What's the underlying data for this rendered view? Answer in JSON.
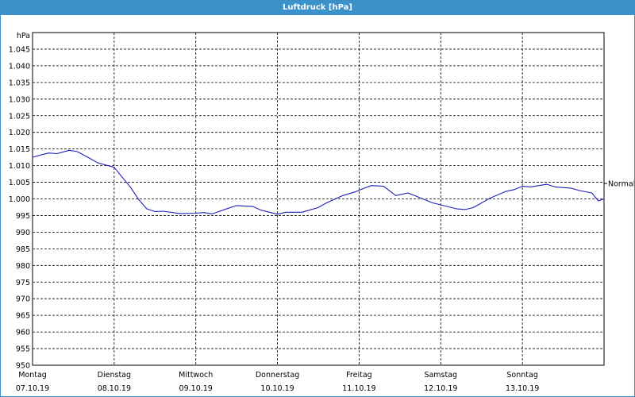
{
  "window": {
    "title": "Luftdruck [hPa]"
  },
  "chart_data": {
    "type": "line",
    "unit_label": "hPa",
    "ylim": [
      950,
      1050
    ],
    "yticks": [
      950,
      955,
      960,
      965,
      970,
      975,
      980,
      985,
      990,
      995,
      1000,
      1005,
      1010,
      1015,
      1020,
      1025,
      1030,
      1035,
      1040,
      1045
    ],
    "ytick_labels": [
      "950",
      "955",
      "960",
      "965",
      "970",
      "975",
      "980",
      "985",
      "990",
      "995",
      "1.000",
      "1.005",
      "1.010",
      "1.015",
      "1.020",
      "1.025",
      "1.030",
      "1.035",
      "1.040",
      "1.045"
    ],
    "xlim": [
      0,
      7
    ],
    "days": [
      {
        "day": "Montag",
        "date": "07.10.19"
      },
      {
        "day": "Dienstag",
        "date": "08.10.19"
      },
      {
        "day": "Mittwoch",
        "date": "09.10.19"
      },
      {
        "day": "Donnerstag",
        "date": "10.10.19"
      },
      {
        "day": "Freitag",
        "date": "11.10.19"
      },
      {
        "day": "Samstag",
        "date": "12.10.19"
      },
      {
        "day": "Sonntag",
        "date": "13.10.19"
      }
    ],
    "reference_line": {
      "label": "Normal",
      "value": 1005
    },
    "grid": true,
    "series": [
      {
        "color": "#1f1fb8",
        "x": [
          0,
          0.1,
          0.2,
          0.3,
          0.45,
          0.55,
          0.7,
          0.8,
          1.0,
          1.1,
          1.2,
          1.3,
          1.4,
          1.5,
          1.6,
          1.8,
          2.0,
          2.1,
          2.2,
          2.4,
          2.5,
          2.7,
          2.8,
          3.0,
          3.1,
          3.3,
          3.5,
          3.6,
          3.8,
          3.95,
          4.05,
          4.15,
          4.3,
          4.45,
          4.6,
          4.75,
          4.9,
          5.0,
          5.2,
          5.3,
          5.4,
          5.6,
          5.8,
          5.9,
          6.0,
          6.1,
          6.3,
          6.4,
          6.6,
          6.7,
          6.85,
          6.93,
          7.0
        ],
        "y": [
          1012.5,
          1013.2,
          1013.8,
          1013.6,
          1014.6,
          1014.2,
          1012.2,
          1010.8,
          1009.5,
          1006.5,
          1003.5,
          999.8,
          997.0,
          996.2,
          996.3,
          995.6,
          995.7,
          995.9,
          995.5,
          997.2,
          998.0,
          997.7,
          996.6,
          995.4,
          996.0,
          996.0,
          997.4,
          998.8,
          1001.0,
          1002.1,
          1003.1,
          1004.0,
          1003.8,
          1001.0,
          1001.8,
          1000.3,
          998.8,
          998.2,
          997.0,
          996.8,
          997.4,
          1000.2,
          1002.3,
          1002.8,
          1003.8,
          1003.6,
          1004.4,
          1003.6,
          1003.2,
          1002.5,
          1001.8,
          999.4,
          1000.0
        ]
      }
    ]
  }
}
